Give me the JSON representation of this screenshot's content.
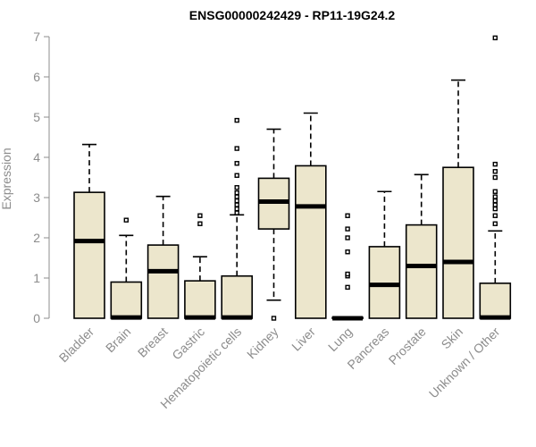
{
  "chart_data": {
    "type": "boxplot",
    "title": "ENSG00000242429 - RP11-19G24.2",
    "ylabel": "Expression",
    "ylim": [
      0,
      7
    ],
    "yticks": [
      0,
      1,
      2,
      3,
      4,
      5,
      6,
      7
    ],
    "colors": {
      "box_fill": "#ece6cc",
      "stroke": "#000000",
      "axis": "#8c8c8c"
    },
    "series": [
      {
        "category": "Bladder",
        "min": 0,
        "q1": 0,
        "median": 1.92,
        "q3": 3.13,
        "max": 4.32,
        "outliers": []
      },
      {
        "category": "Brain",
        "min": 0,
        "q1": 0,
        "median": 0.02,
        "q3": 0.9,
        "max": 2.06,
        "outliers": [
          2.44
        ]
      },
      {
        "category": "Breast",
        "min": 0,
        "q1": 0,
        "median": 1.17,
        "q3": 1.82,
        "max": 3.03,
        "outliers": []
      },
      {
        "category": "Gastric",
        "min": 0,
        "q1": 0,
        "median": 0.02,
        "q3": 0.93,
        "max": 1.53,
        "outliers": [
          2.35,
          2.55
        ]
      },
      {
        "category": "Hematopoietic cells",
        "min": 0,
        "q1": 0,
        "median": 0.02,
        "q3": 1.05,
        "max": 2.57,
        "outliers": [
          2.62,
          2.72,
          2.82,
          2.92,
          3.02,
          3.12,
          3.25,
          3.55,
          3.85,
          4.22,
          4.92
        ]
      },
      {
        "category": "Kidney",
        "min": 0.45,
        "q1": 2.22,
        "median": 2.9,
        "q3": 3.48,
        "max": 4.7,
        "outliers": [
          0
        ]
      },
      {
        "category": "Liver",
        "min": 0,
        "q1": 0,
        "median": 2.78,
        "q3": 3.79,
        "max": 5.1,
        "outliers": []
      },
      {
        "category": "Lung",
        "min": 0,
        "q1": 0,
        "median": 0,
        "q3": 0.02,
        "max": 0.02,
        "outliers": [
          0.77,
          1.05,
          1.1,
          1.65,
          2.0,
          2.22,
          2.55
        ]
      },
      {
        "category": "Pancreas",
        "min": 0,
        "q1": 0,
        "median": 0.83,
        "q3": 1.78,
        "max": 3.15,
        "outliers": []
      },
      {
        "category": "Prostate",
        "min": 0,
        "q1": 0,
        "median": 1.3,
        "q3": 2.32,
        "max": 3.57,
        "outliers": []
      },
      {
        "category": "Skin",
        "min": 0,
        "q1": 0,
        "median": 1.4,
        "q3": 3.75,
        "max": 5.92,
        "outliers": []
      },
      {
        "category": "Unknown / Other",
        "min": 0,
        "q1": 0,
        "median": 0.02,
        "q3": 0.87,
        "max": 2.17,
        "outliers": [
          2.35,
          2.55,
          2.72,
          2.82,
          2.92,
          3.02,
          3.15,
          3.5,
          3.65,
          3.83,
          6.97
        ]
      }
    ]
  }
}
